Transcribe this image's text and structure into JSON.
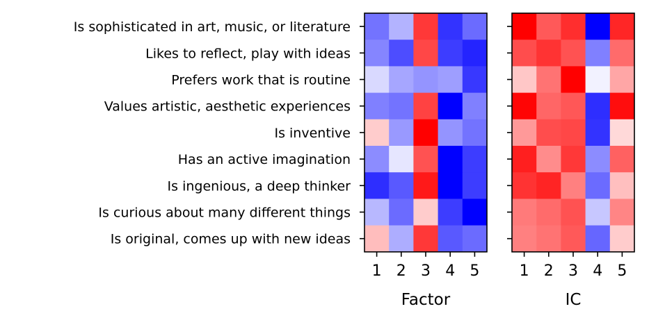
{
  "chart_data": {
    "type": "heatmap",
    "rows": [
      "Is sophisticated in art, music, or literature",
      "Likes to reflect, play with ideas",
      "Prefers work that is routine",
      "Values artistic, aesthetic experiences",
      "Is inventive",
      "Has an active imagination",
      "Is ingenious, a deep thinker",
      "Is curious about many different things",
      "Is original, comes up with new ideas"
    ],
    "colormap": "bwr",
    "colors": {
      "low": "#0000ff",
      "mid": "#ffffff",
      "high": "#ff0000"
    },
    "panels": [
      {
        "xlabel": "Factor",
        "columns": [
          "1",
          "2",
          "3",
          "4",
          "5"
        ],
        "values": [
          [
            -0.55,
            -0.3,
            0.78,
            -0.8,
            -0.58
          ],
          [
            -0.48,
            -0.7,
            0.72,
            -0.76,
            -0.86
          ],
          [
            -0.15,
            -0.35,
            -0.42,
            -0.38,
            -0.78
          ],
          [
            -0.5,
            -0.55,
            0.74,
            -1.0,
            -0.5
          ],
          [
            0.2,
            -0.4,
            1.0,
            -0.42,
            -0.55
          ],
          [
            -0.45,
            -0.1,
            0.68,
            -1.0,
            -0.76
          ],
          [
            -0.82,
            -0.65,
            0.9,
            -1.0,
            -0.76
          ],
          [
            -0.28,
            -0.58,
            0.2,
            -0.76,
            -1.0
          ],
          [
            0.26,
            -0.32,
            0.78,
            -0.65,
            -0.58
          ]
        ]
      },
      {
        "xlabel": "IC",
        "columns": [
          "1",
          "2",
          "3",
          "4",
          "5"
        ],
        "values": [
          [
            1.0,
            0.65,
            0.82,
            -1.0,
            0.85
          ],
          [
            0.7,
            0.8,
            0.68,
            -0.5,
            0.58
          ],
          [
            0.22,
            0.55,
            1.0,
            -0.05,
            0.35
          ],
          [
            0.98,
            0.6,
            0.66,
            -0.82,
            0.95
          ],
          [
            0.4,
            0.7,
            0.72,
            -0.8,
            0.15
          ],
          [
            0.88,
            0.45,
            0.78,
            -0.45,
            0.62
          ],
          [
            0.8,
            0.86,
            0.5,
            -0.58,
            0.25
          ],
          [
            0.52,
            0.58,
            0.68,
            -0.22,
            0.48
          ],
          [
            0.5,
            0.55,
            0.65,
            -0.6,
            0.2
          ]
        ]
      }
    ]
  }
}
